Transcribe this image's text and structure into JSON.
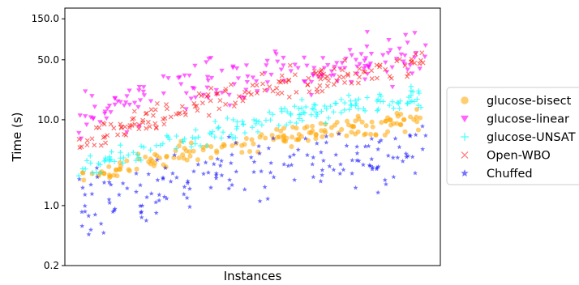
{
  "chart_data": {
    "type": "scatter",
    "title": "",
    "xlabel": "Instances",
    "ylabel": "Time (s)",
    "y_scale": "log",
    "ylim": [
      0.2,
      200
    ],
    "y_ticks": [
      {
        "value": 0.2,
        "label": "0.2"
      },
      {
        "value": 1.0,
        "label": "1.0"
      },
      {
        "value": 10.0,
        "label": "10.0"
      },
      {
        "value": 50.0,
        "label": "50.0"
      },
      {
        "value": 150.0,
        "label": "150.0"
      }
    ],
    "x_ticks": "none",
    "grid": false,
    "legend_placement": "right, outside plot",
    "n_instances": 260,
    "series": [
      {
        "name": "glucose-bisect",
        "marker": "circle",
        "color": "#ffa500",
        "trend_start": 2.0,
        "trend_end": 10.0,
        "spread": 0.09,
        "n_points": 170
      },
      {
        "name": "glucose-linear",
        "marker": "triangle-down",
        "color": "#ff00ff",
        "trend_start": 12.0,
        "trend_end": 55.0,
        "spread": 0.2,
        "n_points": 170
      },
      {
        "name": "glucose-UNSAT",
        "marker": "plus",
        "color": "#00ffff",
        "trend_start": 2.5,
        "trend_end": 18.0,
        "spread": 0.1,
        "n_points": 170
      },
      {
        "name": "Open-WBO",
        "marker": "x",
        "color": "#ff0000",
        "trend_start": 5.5,
        "trend_end": 45.0,
        "spread": 0.1,
        "n_points": 170
      },
      {
        "name": "Chuffed",
        "marker": "star",
        "color": "#0000ff",
        "trend_start": 1.0,
        "trend_end": 4.5,
        "spread": 0.26,
        "n_points": 170
      }
    ]
  }
}
